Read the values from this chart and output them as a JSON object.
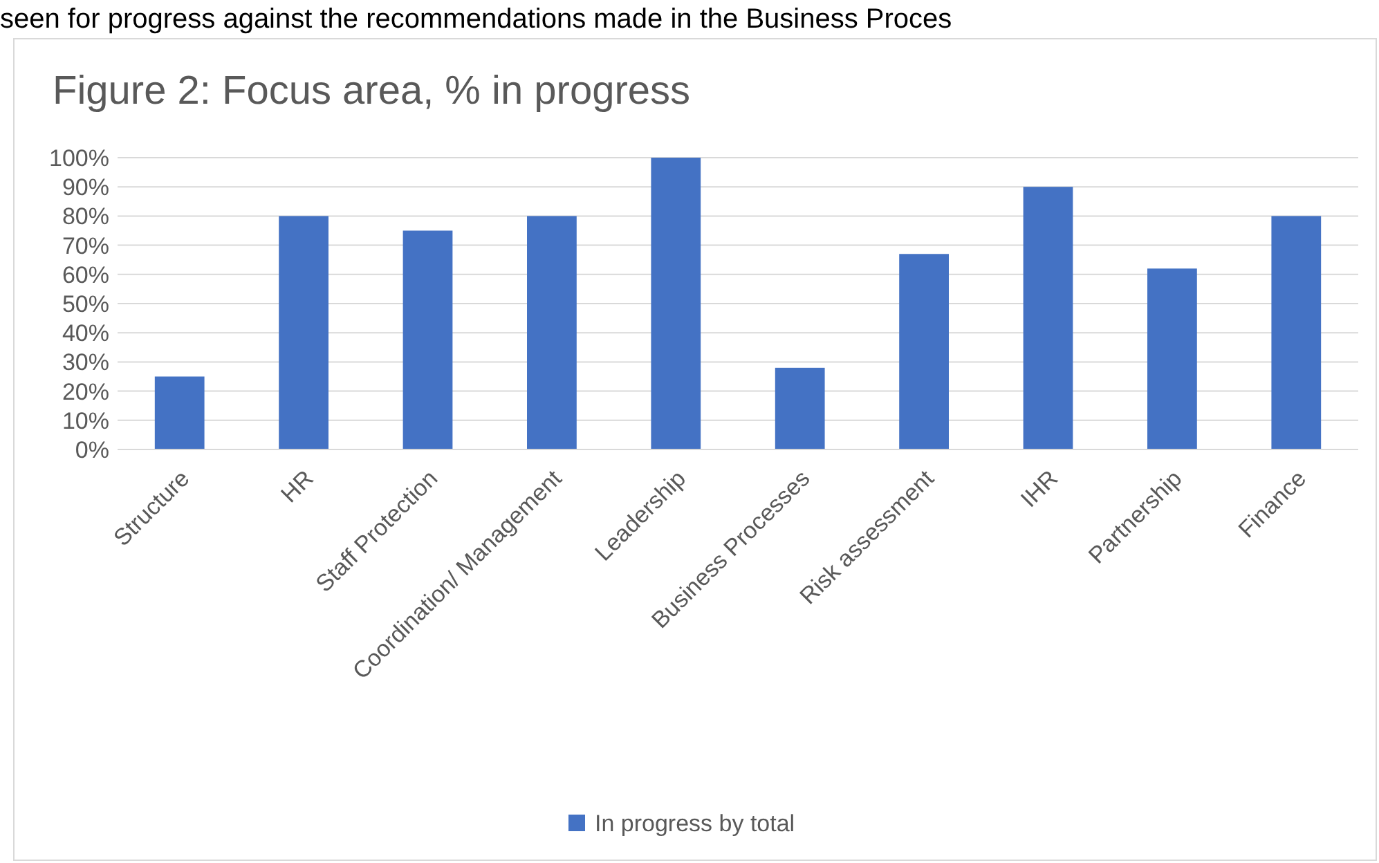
{
  "chart_data": {
    "type": "bar",
    "title": "Figure 2: Focus area, % in progress",
    "annotations": [
      "seen for progress against the recommendations made in the Business Proces"
    ],
    "categories": [
      "Structure",
      "HR",
      "Staff Protection",
      "Coordination/ Management",
      "Leadership",
      "Business Processes",
      "Risk assessment",
      "IHR",
      "Partnership",
      "Finance"
    ],
    "series": [
      {
        "name": "In progress by total",
        "color": "#4472c4",
        "values": [
          25,
          80,
          75,
          80,
          100,
          28,
          67,
          90,
          62,
          80
        ]
      }
    ],
    "ylim": [
      0,
      100
    ],
    "yticks": [
      {
        "value": 0,
        "label": "0%"
      },
      {
        "value": 10,
        "label": "10%"
      },
      {
        "value": 20,
        "label": "20%"
      },
      {
        "value": 30,
        "label": "30%"
      },
      {
        "value": 40,
        "label": "40%"
      },
      {
        "value": 50,
        "label": "50%"
      },
      {
        "value": 60,
        "label": "60%"
      },
      {
        "value": 70,
        "label": "70%"
      },
      {
        "value": 80,
        "label": "80%"
      },
      {
        "value": 90,
        "label": "90%"
      },
      {
        "value": 100,
        "label": "100%"
      }
    ],
    "grid": "y",
    "legend": "bottom"
  }
}
